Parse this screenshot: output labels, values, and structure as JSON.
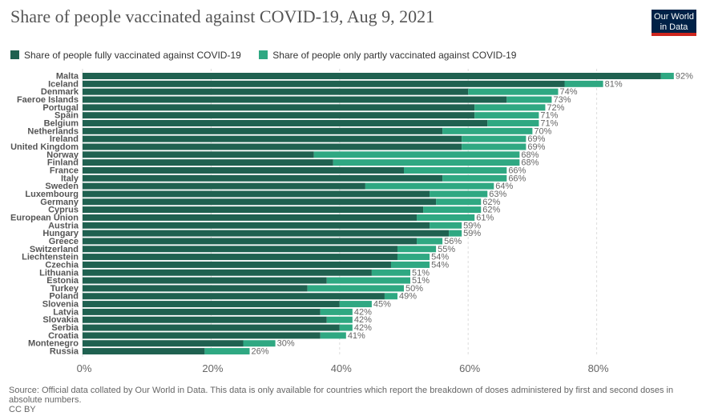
{
  "header": {
    "title": "Share of people vaccinated against COVID-19, Aug 9, 2021",
    "logo_line1": "Our World",
    "logo_line2": "in Data"
  },
  "legend": {
    "full_label": "Share of people fully vaccinated against COVID-19",
    "partial_label": "Share of people only partly vaccinated against COVID-19"
  },
  "footer": {
    "source": "Source: Official data collated by Our World in Data. This data is only available for countries which report the breakdown of doses administered by first and second doses in absolute numbers.",
    "license": "CC BY"
  },
  "colors": {
    "full": "#1f6150",
    "partial": "#2fa882",
    "brand": "#002147",
    "brand_accent": "#ce261e"
  },
  "chart_data": {
    "type": "bar",
    "orientation": "horizontal",
    "stacked": true,
    "categories": [
      "Malta",
      "Iceland",
      "Denmark",
      "Faeroe Islands",
      "Portugal",
      "Spain",
      "Belgium",
      "Netherlands",
      "Ireland",
      "United Kingdom",
      "Norway",
      "Finland",
      "France",
      "Italy",
      "Sweden",
      "Luxembourg",
      "Germany",
      "Cyprus",
      "European Union",
      "Austria",
      "Hungary",
      "Greece",
      "Switzerland",
      "Liechtenstein",
      "Czechia",
      "Lithuania",
      "Estonia",
      "Turkey",
      "Poland",
      "Slovenia",
      "Latvia",
      "Slovakia",
      "Serbia",
      "Croatia",
      "Montenegro",
      "Russia"
    ],
    "series": [
      {
        "name": "Share of people fully vaccinated against COVID-19",
        "values": [
          90,
          75,
          60,
          66,
          61,
          61,
          63,
          56,
          59,
          59,
          36,
          39,
          50,
          56,
          44,
          54,
          55,
          53,
          52,
          54,
          57,
          52,
          49,
          49,
          48,
          45,
          38,
          35,
          47,
          40,
          37,
          38,
          40,
          37,
          25,
          19
        ]
      },
      {
        "name": "Share of people only partly vaccinated against COVID-19",
        "values": [
          2,
          6,
          14,
          7,
          11,
          10,
          8,
          14,
          10,
          10,
          32,
          29,
          16,
          10,
          20,
          9,
          7,
          9,
          9,
          5,
          2,
          4,
          6,
          5,
          6,
          6,
          13,
          15,
          2,
          5,
          5,
          4,
          2,
          4,
          5,
          7
        ]
      }
    ],
    "totals": [
      "92%",
      "81%",
      "74%",
      "73%",
      "72%",
      "71%",
      "71%",
      "70%",
      "69%",
      "69%",
      "68%",
      "68%",
      "66%",
      "66%",
      "64%",
      "63%",
      "62%",
      "62%",
      "61%",
      "59%",
      "59%",
      "56%",
      "55%",
      "54%",
      "54%",
      "51%",
      "51%",
      "50%",
      "49%",
      "45%",
      "42%",
      "42%",
      "42%",
      "41%",
      "30%",
      "26%"
    ],
    "xaxis": {
      "ticks": [
        "0%",
        "20%",
        "40%",
        "60%",
        "80%"
      ],
      "tick_values": [
        0,
        20,
        40,
        60,
        80
      ]
    },
    "xlim": [
      0,
      92
    ],
    "grid": true,
    "legend_position": "top"
  }
}
